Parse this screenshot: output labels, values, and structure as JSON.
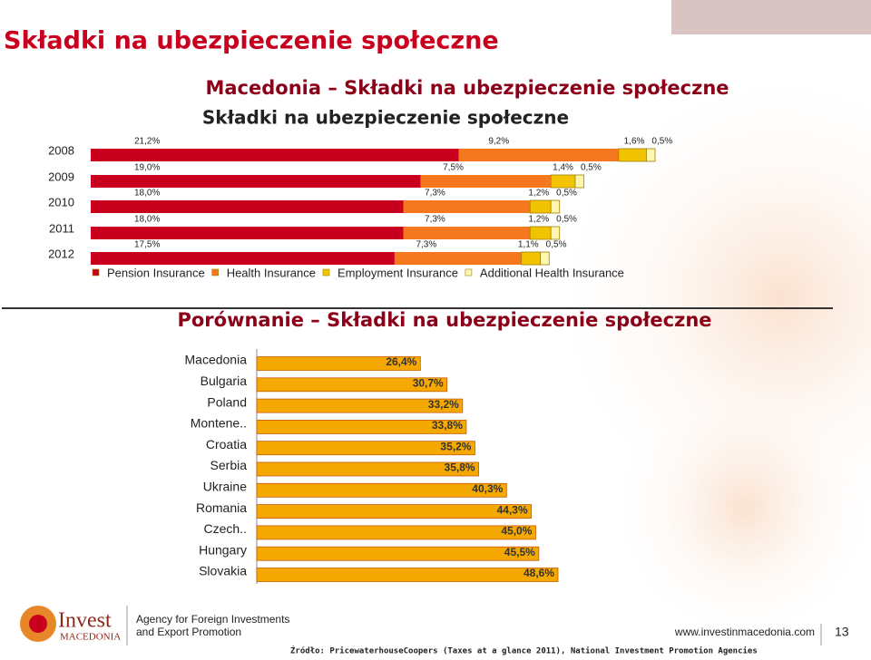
{
  "title": "Składki na ubezpieczenie społeczne",
  "chart_data": [
    {
      "type": "stacked-bar",
      "title": "Macedonia – Składki na ubezpieczenie społeczne",
      "subtitle": "Składki na ubezpieczenie społeczne",
      "categories": [
        "2008",
        "2009",
        "2010",
        "2011",
        "2012"
      ],
      "series": [
        {
          "name": "Pension Insurance",
          "color": "#c8001e",
          "values": [
            21.2,
            19.0,
            18.0,
            18.0,
            17.5
          ],
          "value_labels": [
            "21,2%",
            "19,0%",
            "18,0%",
            "18,0%",
            "17,5%"
          ]
        },
        {
          "name": "Health Insurance",
          "color": "#f5781e",
          "values": [
            9.2,
            7.5,
            7.3,
            7.3,
            7.3
          ],
          "value_labels": [
            "9,2%",
            "7,5%",
            "7,3%",
            "7,3%",
            "7,3%"
          ]
        },
        {
          "name": "Employment Insurance",
          "color": "#f2c400",
          "values": [
            1.6,
            1.4,
            1.2,
            1.2,
            1.1
          ],
          "value_labels": [
            "1,6%",
            "1,4%",
            "1,2%",
            "1,2%",
            "1,1%"
          ]
        },
        {
          "name": "Additional Health Insurance",
          "color": "#fff6b0",
          "values": [
            0.5,
            0.5,
            0.5,
            0.5,
            0.5
          ],
          "value_labels": [
            "0,5%",
            "0,5%",
            "0,5%",
            "0,5%",
            "0,5%"
          ]
        }
      ],
      "legend": "bottom"
    },
    {
      "type": "bar",
      "title": "Porównanie – Składki na ubezpieczenie społeczne",
      "categories": [
        "Macedonia",
        "Bulgaria",
        "Poland",
        "Montene..",
        "Croatia",
        "Serbia",
        "Ukraine",
        "Romania",
        "Czech..",
        "Hungary",
        "Slovakia"
      ],
      "values": [
        26.4,
        30.7,
        33.2,
        33.8,
        35.2,
        35.8,
        40.3,
        44.3,
        45.0,
        45.5,
        48.6
      ],
      "value_labels": [
        "26,4%",
        "30,7%",
        "33,2%",
        "33,8%",
        "35,2%",
        "35,8%",
        "40,3%",
        "44,3%",
        "45,0%",
        "45,5%",
        "48,6%"
      ],
      "color": "#f5a800"
    }
  ],
  "footer": {
    "logo": "Invest",
    "logo_sub": "MACEDONIA",
    "agency": [
      "Agency for Foreign Investments",
      "and Export Promotion"
    ],
    "url": "www.investinmacedonia.com",
    "page": "13",
    "source": "Źródło: PricewaterhouseCoopers (Taxes at a glance 2011), National Investment Promotion Agencies"
  }
}
